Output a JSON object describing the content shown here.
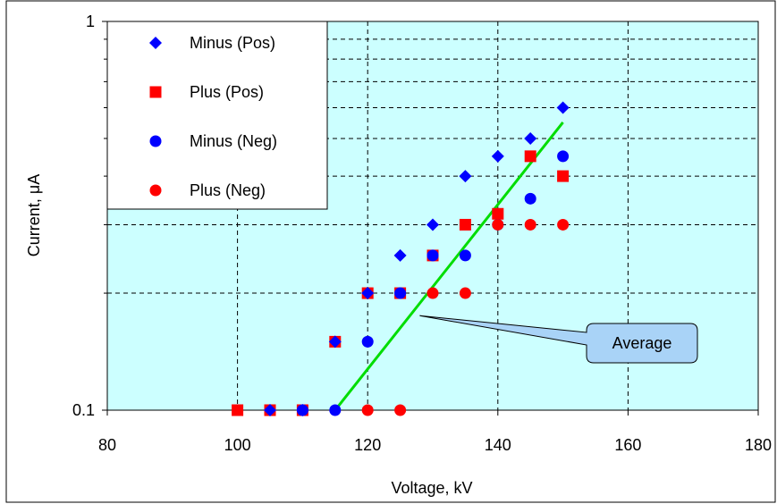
{
  "chart_data": {
    "type": "scatter",
    "title": "",
    "xlabel": "Voltage, kV",
    "ylabel": "Current, μA",
    "xlim": [
      80,
      180
    ],
    "ylim": [
      0.1,
      1
    ],
    "y_scale": "log",
    "x_ticks": [
      80,
      100,
      120,
      140,
      160,
      180
    ],
    "x_tick_labels": [
      "80",
      "100",
      "120",
      "140",
      "160",
      "180"
    ],
    "y_tick_values": [
      0.1,
      1
    ],
    "y_tick_labels": [
      "0.1",
      "1"
    ],
    "grid": true,
    "plot_background": "#ccffff",
    "legend_position": "top-left",
    "series": [
      {
        "name": "Minus (Pos)",
        "marker": "diamond",
        "color": "#0000ff",
        "x": [
          105,
          110,
          115,
          120,
          125,
          130,
          135,
          140,
          145,
          150
        ],
        "y": [
          0.1,
          0.1,
          0.15,
          0.2,
          0.25,
          0.3,
          0.4,
          0.45,
          0.5,
          0.6
        ]
      },
      {
        "name": "Plus (Pos)",
        "marker": "square",
        "color": "#ff0000",
        "x": [
          100,
          105,
          110,
          115,
          120,
          125,
          130,
          135,
          140,
          145,
          150
        ],
        "y": [
          0.1,
          0.1,
          0.1,
          0.15,
          0.2,
          0.2,
          0.25,
          0.3,
          0.32,
          0.45,
          0.4
        ]
      },
      {
        "name": "Minus (Neg)",
        "marker": "circle",
        "color": "#0000ff",
        "x": [
          110,
          115,
          120,
          125,
          130,
          135,
          140,
          145,
          150
        ],
        "y": [
          0.1,
          0.1,
          0.15,
          0.2,
          0.25,
          0.25,
          0.3,
          0.35,
          0.45
        ]
      },
      {
        "name": "Plus (Neg)",
        "marker": "circle",
        "color": "#ff0000",
        "x": [
          120,
          125,
          130,
          135,
          140,
          145,
          150
        ],
        "y": [
          0.1,
          0.1,
          0.2,
          0.2,
          0.3,
          0.3,
          0.3
        ]
      }
    ],
    "trend_line": {
      "color": "#00dd00",
      "x": [
        115,
        150
      ],
      "y": [
        0.1,
        0.55
      ]
    },
    "annotation": {
      "text": "Average",
      "points_to": [
        128,
        0.175
      ],
      "box_color": "#a9d3f7"
    }
  }
}
